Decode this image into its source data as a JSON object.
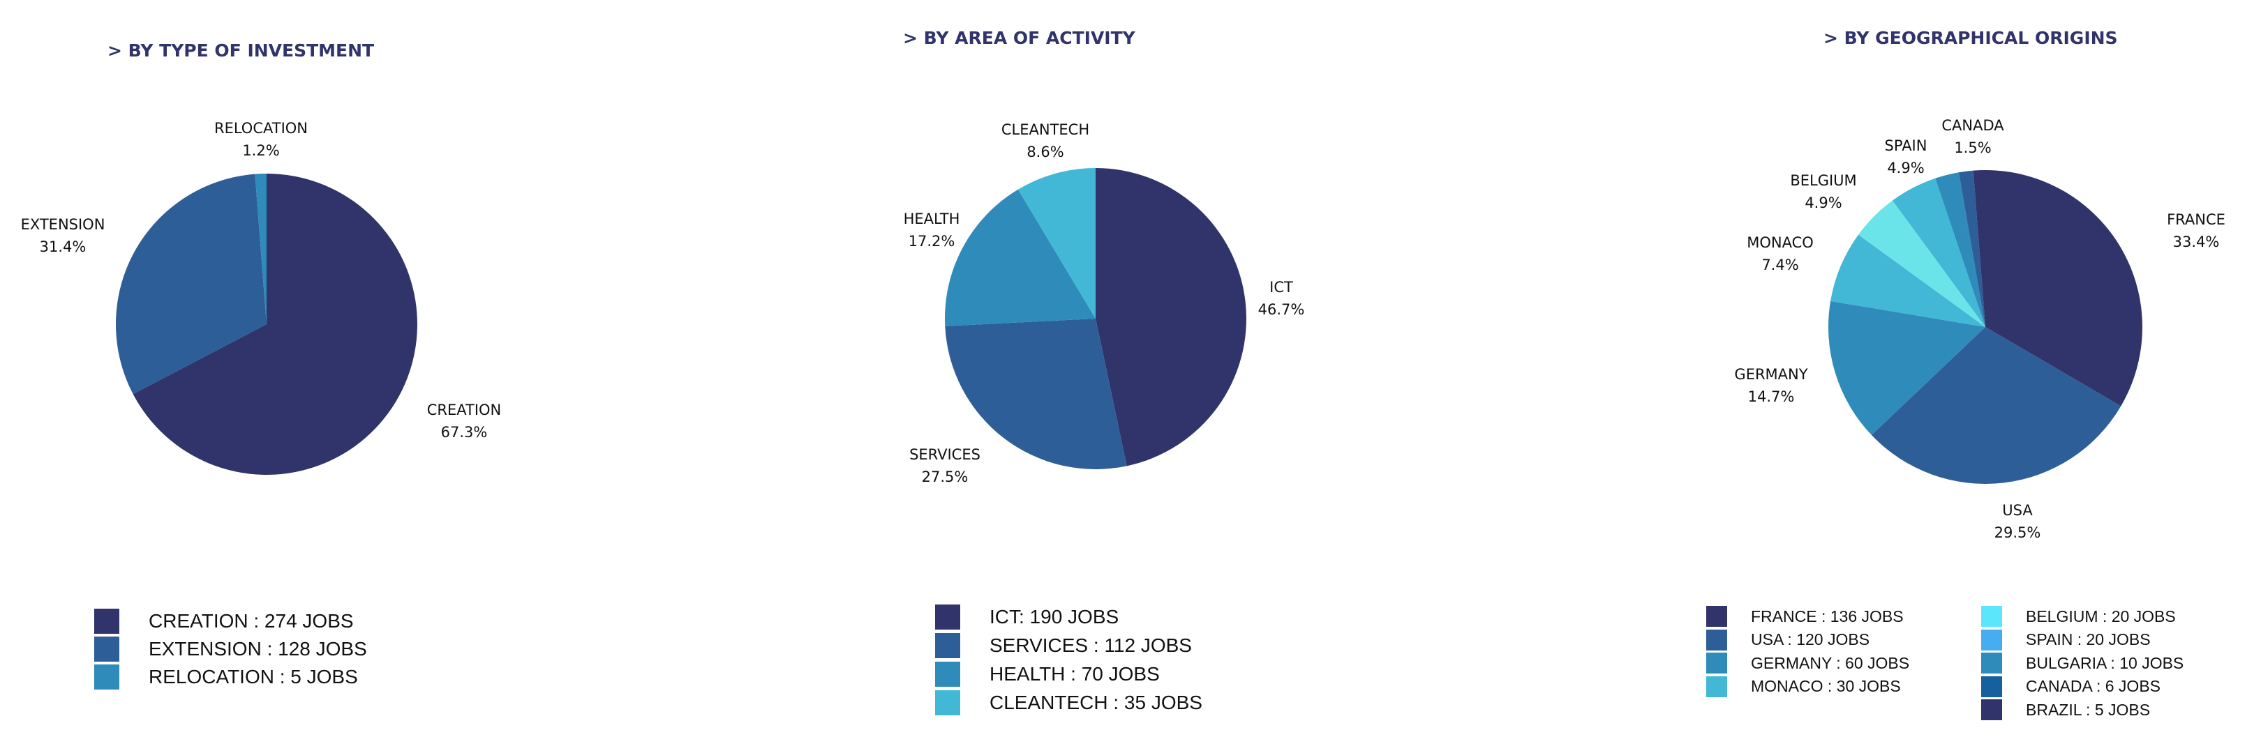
{
  "chart_data": [
    {
      "type": "pie",
      "title": "> BY TYPE OF INVESTMENT",
      "categories": [
        "CREATION",
        "EXTENSION",
        "RELOCATION"
      ],
      "values": [
        274,
        128,
        5
      ],
      "percent_labels": [
        "67.3%",
        "31.4%",
        "1.2%"
      ],
      "colors": [
        "#31346b",
        "#2e5e98",
        "#2e8bba"
      ],
      "legend": [
        "CREATION : 274 JOBS",
        "EXTENSION : 128 JOBS",
        "RELOCATION : 5 JOBS"
      ],
      "legend_placement": "bottom"
    },
    {
      "type": "pie",
      "title": "> BY AREA OF ACTIVITY",
      "categories": [
        "ICT",
        "SERVICES",
        "HEALTH",
        "CLEANTECH"
      ],
      "values": [
        190,
        112,
        70,
        35
      ],
      "percent_labels": [
        "46.7%",
        "27.5%",
        "17.2%",
        "8.6%"
      ],
      "colors": [
        "#31346b",
        "#2e5e98",
        "#2e8bba",
        "#42b8d6"
      ],
      "legend": [
        "ICT: 190 JOBS",
        "SERVICES : 112 JOBS",
        "HEALTH : 70 JOBS",
        "CLEANTECH : 35 JOBS"
      ],
      "legend_placement": "bottom"
    },
    {
      "type": "pie",
      "title": "> BY GEOGRAPHICAL ORIGINS",
      "categories": [
        "FRANCE",
        "USA",
        "GERMANY",
        "MONACO",
        "BELGIUM",
        "SPAIN",
        "BULGARIA",
        "CANADA",
        "BRAZIL"
      ],
      "values": [
        136,
        120,
        60,
        30,
        20,
        20,
        10,
        6,
        5
      ],
      "percent_labels": [
        "33.4%",
        "29.5%",
        "14.7%",
        "7.4%",
        "4.9%",
        "4.9%",
        "",
        "1.5%",
        ""
      ],
      "colors": [
        "#31346b",
        "#2e5e98",
        "#2e8bba",
        "#42b8d6",
        "#6ae4e8",
        "#42b8d6",
        "#2e8bba",
        "#2e5e98",
        "#31346b"
      ],
      "legend": [
        "FRANCE : 136 JOBS",
        "USA : 120  JOBS",
        "GERMANY : 60  JOBS",
        "MONACO : 30  JOBS",
        "BELGIUM : 20  JOBS",
        "SPAIN : 20  JOBS",
        "BULGARIA : 10  JOBS",
        "CANADA : 6  JOBS",
        "BRAZIL : 5  JOBS"
      ],
      "legend_colors": [
        "#31346b",
        "#2e5e98",
        "#2e8bba",
        "#42b8d6",
        "#5ce6fc",
        "#46aef0",
        "#2e8bba",
        "#1660a0",
        "#31346b"
      ],
      "legend_placement": "bottom"
    }
  ]
}
